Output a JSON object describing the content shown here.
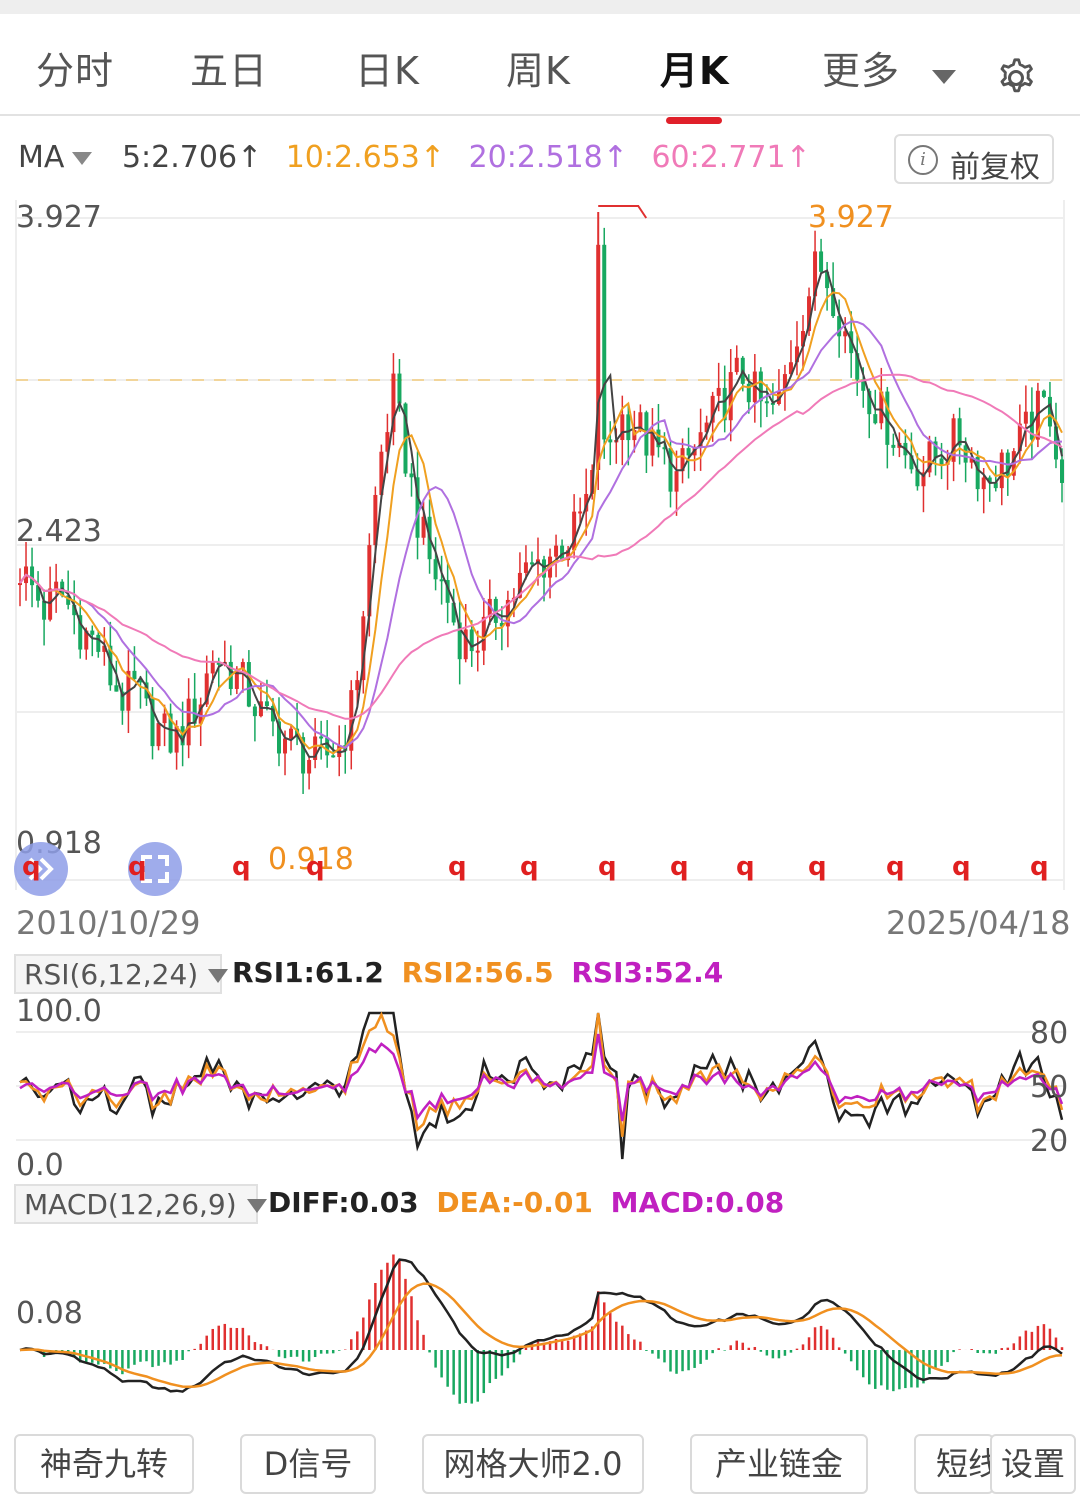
{
  "tabs": [
    {
      "label": "分时"
    },
    {
      "label": "五日"
    },
    {
      "label": "日K"
    },
    {
      "label": "周K"
    },
    {
      "label": "月K",
      "active": true
    },
    {
      "label": "更多"
    }
  ],
  "ma": {
    "label": "MA",
    "items": [
      {
        "text": "5:2.706↑",
        "color": "#444444"
      },
      {
        "text": "10:2.653↑",
        "color": "#f0a020"
      },
      {
        "text": "20:2.518↑",
        "color": "#b070e0"
      },
      {
        "text": "60:2.771↑",
        "color": "#f07ab8"
      }
    ],
    "arrow_color": "#e02020"
  },
  "fuquan_button": {
    "label": "前复权",
    "icon": "info-icon"
  },
  "main_chart": {
    "ymax_label": "3.927",
    "ymid_label": "2.423",
    "ymin_label": "0.918",
    "peak_label": "3.927",
    "low_label": "0.918",
    "start_date": "2010/10/29",
    "end_date": "2025/04/18",
    "signal_label": "q"
  },
  "rsi": {
    "name": "RSI(6,12,24)",
    "values": [
      {
        "text": "RSI1:61.2",
        "color": "#222222"
      },
      {
        "text": "RSI2:56.5",
        "color": "#f09020"
      },
      {
        "text": "RSI3:52.4",
        "color": "#c020c0"
      }
    ],
    "top_label": "100.0",
    "bottom_label": "0.0",
    "levels": [
      "80",
      "50",
      "20"
    ]
  },
  "macd": {
    "name": "MACD(12,26,9)",
    "values": [
      {
        "text": "DIFF:0.03",
        "color": "#222222"
      },
      {
        "text": "DEA:-0.01",
        "color": "#f09020"
      },
      {
        "text": "MACD:0.08",
        "color": "#c020c0"
      }
    ],
    "level_label": "0.08"
  },
  "bottom_buttons": [
    "神奇九转",
    "D信号",
    "网格大师2.0",
    "产业链金",
    "短线",
    "设置"
  ],
  "colors": {
    "up": "#e03030",
    "down": "#18a860",
    "ma5": "#444444",
    "ma10": "#f0a020",
    "ma20": "#b070e0",
    "ma60": "#f07ab8",
    "accent": "#e0202a"
  },
  "chart_data": {
    "type": "candlestick",
    "period": "monthly",
    "x_range": [
      "2010/10/29",
      "2025/04/18"
    ],
    "y_range": [
      0.918,
      3.927
    ],
    "high": 3.927,
    "low": 0.918,
    "close_series": [
      2.3,
      2.2,
      2.1,
      2.2,
      2.1,
      2.0,
      1.95,
      1.8,
      1.7,
      1.75,
      1.6,
      1.55,
      1.5,
      1.6,
      1.7,
      1.9,
      1.85,
      1.8,
      1.7,
      1.6,
      1.55,
      1.5,
      1.45,
      1.42,
      1.45,
      1.5,
      1.7,
      2.3,
      2.8,
      3.1,
      2.8,
      2.5,
      2.3,
      2.2,
      2.0,
      1.95,
      2.0,
      2.1,
      2.15,
      2.25,
      2.3,
      2.35,
      2.4,
      2.45,
      2.6,
      2.75,
      2.9,
      3.0,
      2.95,
      2.85,
      2.8,
      2.7,
      2.8,
      2.9,
      3.0,
      3.1,
      3.2,
      3.1,
      3.0,
      3.05,
      3.3,
      3.5,
      3.7,
      3.6,
      3.4,
      3.2,
      3.1,
      3.0,
      2.9,
      2.8,
      2.75,
      2.8,
      2.85,
      2.9,
      2.8,
      2.7,
      2.75,
      2.8,
      2.9,
      3.0,
      3.05,
      2.706
    ]
  }
}
